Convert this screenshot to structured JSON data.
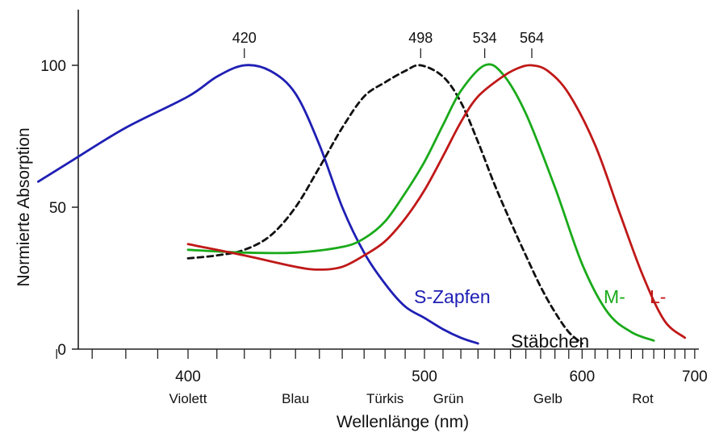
{
  "chart_data": {
    "type": "line",
    "xlabel": "Wellenlänge (nm)",
    "ylabel": "Normierte Absorption",
    "x_scale": "reciprocal",
    "xlim": [
      360,
      700
    ],
    "ylim": [
      0,
      100
    ],
    "x_ticks": [
      400,
      500,
      600,
      700
    ],
    "x_minor_ticks": [
      360,
      370,
      380,
      390,
      400,
      410,
      420,
      430,
      440,
      450,
      460,
      470,
      480,
      490,
      500,
      510,
      520,
      530,
      540,
      550,
      560,
      570,
      580,
      590,
      600,
      610,
      620,
      630,
      640,
      650,
      660,
      670,
      680,
      690,
      700
    ],
    "y_ticks": [
      0,
      50,
      100
    ],
    "color_bands": [
      {
        "label": "Violett",
        "x": 400
      },
      {
        "label": "Blau",
        "x": 440
      },
      {
        "label": "Türkis",
        "x": 480
      },
      {
        "label": "Grün",
        "x": 513
      },
      {
        "label": "Gelb",
        "x": 575
      },
      {
        "label": "Rot",
        "x": 650
      }
    ],
    "peaks": [
      {
        "label": "420",
        "x": 420
      },
      {
        "label": "498",
        "x": 498
      },
      {
        "label": "534",
        "x": 534
      },
      {
        "label": "564",
        "x": 564
      }
    ],
    "series": [
      {
        "name": "S-Zapfen",
        "color": "#1f1fb4",
        "dashed": false,
        "points": [
          [
            355,
            59
          ],
          [
            365,
            67
          ],
          [
            380,
            78
          ],
          [
            400,
            89
          ],
          [
            410,
            96
          ],
          [
            420,
            100
          ],
          [
            430,
            98
          ],
          [
            440,
            90
          ],
          [
            450,
            72
          ],
          [
            460,
            50
          ],
          [
            470,
            34
          ],
          [
            480,
            23
          ],
          [
            490,
            15
          ],
          [
            500,
            11
          ],
          [
            510,
            7
          ],
          [
            520,
            4
          ],
          [
            530,
            2
          ]
        ]
      },
      {
        "name": "Stäbchen",
        "color": "#111111",
        "dashed": true,
        "points": [
          [
            400,
            32
          ],
          [
            410,
            33
          ],
          [
            420,
            35
          ],
          [
            430,
            40
          ],
          [
            440,
            50
          ],
          [
            450,
            64
          ],
          [
            460,
            78
          ],
          [
            470,
            89
          ],
          [
            480,
            94
          ],
          [
            490,
            98
          ],
          [
            498,
            100
          ],
          [
            510,
            96
          ],
          [
            520,
            87
          ],
          [
            530,
            73
          ],
          [
            540,
            58
          ],
          [
            550,
            45
          ],
          [
            560,
            33
          ],
          [
            570,
            22
          ],
          [
            580,
            13
          ],
          [
            590,
            6
          ],
          [
            600,
            2
          ]
        ]
      },
      {
        "name": "M-",
        "color": "#1aaa1a",
        "dashed": false,
        "points": [
          [
            400,
            35
          ],
          [
            420,
            34
          ],
          [
            440,
            34
          ],
          [
            460,
            36
          ],
          [
            470,
            39
          ],
          [
            480,
            45
          ],
          [
            490,
            55
          ],
          [
            500,
            66
          ],
          [
            510,
            79
          ],
          [
            520,
            91
          ],
          [
            534,
            100
          ],
          [
            545,
            97
          ],
          [
            560,
            83
          ],
          [
            580,
            57
          ],
          [
            600,
            30
          ],
          [
            620,
            13
          ],
          [
            640,
            6
          ],
          [
            660,
            3
          ]
        ]
      },
      {
        "name": "L-",
        "color": "#c01818",
        "dashed": false,
        "points": [
          [
            400,
            37
          ],
          [
            420,
            33
          ],
          [
            440,
            29
          ],
          [
            450,
            28
          ],
          [
            460,
            29
          ],
          [
            470,
            33
          ],
          [
            480,
            38
          ],
          [
            490,
            46
          ],
          [
            500,
            56
          ],
          [
            510,
            68
          ],
          [
            520,
            80
          ],
          [
            530,
            89
          ],
          [
            545,
            96
          ],
          [
            555,
            99
          ],
          [
            564,
            100
          ],
          [
            575,
            98
          ],
          [
            590,
            90
          ],
          [
            610,
            72
          ],
          [
            630,
            48
          ],
          [
            650,
            26
          ],
          [
            670,
            10
          ],
          [
            690,
            4
          ]
        ]
      }
    ]
  }
}
